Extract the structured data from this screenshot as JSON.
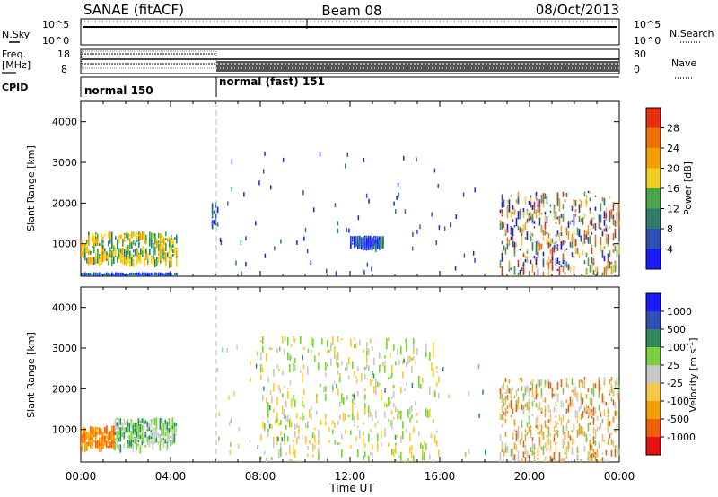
{
  "header": {
    "title": "SANAE (fitACF)",
    "beam": "Beam 08",
    "date": "08/Oct/2013"
  },
  "panel_labels": {
    "nsky": "N.Sky",
    "nsearch": "N.Search",
    "freq_line1": "Freq.",
    "freq_line2": "[MHz]",
    "nave": "Nave",
    "cpid": "CPID",
    "cpid_mode1": "normal 150",
    "cpid_mode2": "normal (fast) 151"
  },
  "noise_axis": {
    "left_ticks": [
      "10^5",
      "10^0"
    ],
    "right_ticks": [
      "10^5",
      "10^0"
    ]
  },
  "freq_axis": {
    "left_ticks": [
      "18",
      "8"
    ],
    "right_ticks": [
      "80",
      "0"
    ]
  },
  "colors": {
    "power": [
      "#1a1aff",
      "#2f4fb5",
      "#2e7d6a",
      "#4aa64a",
      "#f0d020",
      "#f5a000",
      "#f07000",
      "#e83010"
    ],
    "velocity": [
      "#e81010",
      "#f06000",
      "#f5a000",
      "#f5c848",
      "#c8c8c8",
      "#7ecf40",
      "#2e8a5c",
      "#2f4fb5",
      "#1a1aff"
    ]
  },
  "chart_data": [
    {
      "type": "heatmap",
      "title": "",
      "xlabel": "Time UT",
      "ylabel": "Slant Range [km]",
      "x_ticks": [
        "00:00",
        "04:00",
        "08:00",
        "12:00",
        "16:00",
        "20:00",
        "00:00"
      ],
      "y_ticks": [
        "1000",
        "2000",
        "3000",
        "4000"
      ],
      "ylim": [
        200,
        4500
      ],
      "colorbar": {
        "label": "Power [dB]",
        "ticks": [
          "4",
          "8",
          "12",
          "16",
          "20",
          "24",
          "28"
        ],
        "range": [
          0,
          32
        ]
      },
      "echo_regions": [
        {
          "t_start": "00:00",
          "t_end": "04:20",
          "range_km": [
            600,
            1300
          ],
          "power_db": "8-24"
        },
        {
          "t_start": "00:00",
          "t_end": "04:20",
          "range_km": [
            150,
            300
          ],
          "power_db": "4-20"
        },
        {
          "t_start": "05:50",
          "t_end": "06:10",
          "range_km": [
            1500,
            2100
          ],
          "power_db": "4-12"
        },
        {
          "t_start": "12:00",
          "t_end": "13:30",
          "range_km": [
            1000,
            1200
          ],
          "power_db": "4-8"
        },
        {
          "t_start": "18:40",
          "t_end": "24:00",
          "range_km": [
            150,
            2300
          ],
          "power_db": "4-28"
        }
      ]
    },
    {
      "type": "heatmap",
      "title": "",
      "xlabel": "Time UT",
      "ylabel": "Slant Range [km]",
      "x_ticks": [
        "00:00",
        "04:00",
        "08:00",
        "12:00",
        "16:00",
        "20:00",
        "00:00"
      ],
      "y_ticks": [
        "1000",
        "2000",
        "3000",
        "4000"
      ],
      "ylim": [
        200,
        4500
      ],
      "colorbar": {
        "label": "Velocity [m s^-1]",
        "ticks": [
          "1000",
          "500",
          "100",
          "25",
          "-25",
          "-100",
          "-500",
          "-1000"
        ],
        "range": [
          -1200,
          1200
        ]
      },
      "echo_regions": [
        {
          "t_start": "00:00",
          "t_end": "01:30",
          "range_km": [
            600,
            1100
          ],
          "velocity_ms": "-500 to -100"
        },
        {
          "t_start": "01:30",
          "t_end": "04:20",
          "range_km": [
            600,
            1300
          ],
          "velocity_ms": "25 to 500"
        },
        {
          "t_start": "08:00",
          "t_end": "16:00",
          "range_km": [
            200,
            3300
          ],
          "velocity_ms": "-25 to 25"
        },
        {
          "t_start": "18:40",
          "t_end": "24:00",
          "range_km": [
            150,
            2300
          ],
          "velocity_ms": "-500 to 100"
        }
      ]
    }
  ]
}
